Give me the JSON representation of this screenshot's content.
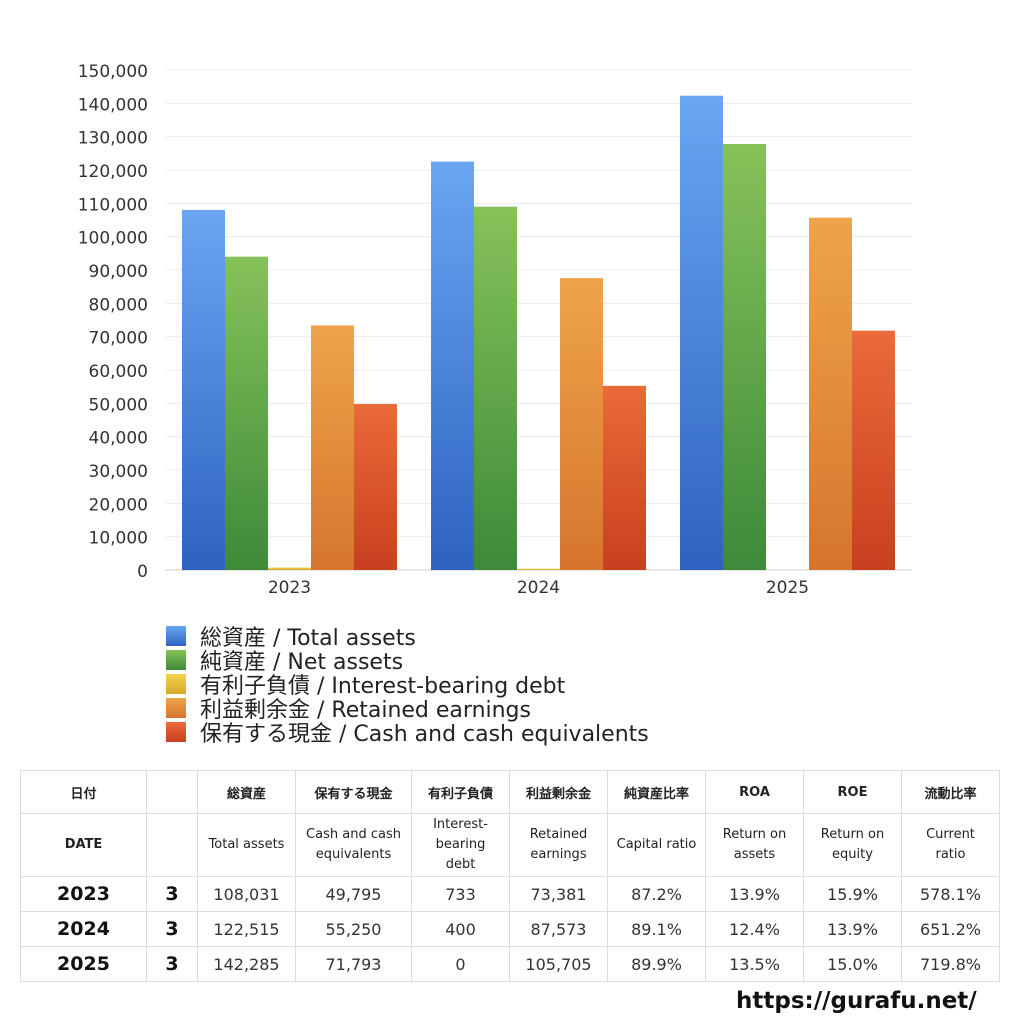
{
  "chart_data": {
    "type": "bar",
    "categories": [
      "2023",
      "2024",
      "2025"
    ],
    "ylim": [
      0,
      150000
    ],
    "yticks": [
      0,
      10000,
      20000,
      30000,
      40000,
      50000,
      60000,
      70000,
      80000,
      90000,
      100000,
      110000,
      120000,
      130000,
      140000,
      150000
    ],
    "ytick_labels": [
      "0",
      "10,000",
      "20,000",
      "30,000",
      "40,000",
      "50,000",
      "60,000",
      "70,000",
      "80,000",
      "90,000",
      "100,000",
      "110,000",
      "120,000",
      "130,000",
      "140,000",
      "150,000"
    ],
    "grid": true,
    "legend_position": "bottom",
    "series": [
      {
        "name": "総資産 / Total assets",
        "values": [
          108031,
          122515,
          142285
        ],
        "color_top": "#6aa6f2",
        "color_bottom": "#2e62c0"
      },
      {
        "name": "純資産 / Net assets",
        "values": [
          94000,
          109000,
          127800
        ],
        "color_top": "#86c25a",
        "color_bottom": "#3d8a3a"
      },
      {
        "name": "有利子負債 / Interest-bearing debt",
        "values": [
          733,
          400,
          0
        ],
        "color_top": "#f4d44e",
        "color_bottom": "#d8a72b"
      },
      {
        "name": "利益剰余金 / Retained earnings",
        "values": [
          73381,
          87573,
          105705
        ],
        "color_top": "#eea44a",
        "color_bottom": "#d6752e"
      },
      {
        "name": "保有する現金 /  Cash and cash equivalents",
        "values": [
          49795,
          55250,
          71793
        ],
        "color_top": "#ea6a3a",
        "color_bottom": "#c8401f"
      }
    ]
  },
  "table": {
    "header_jp": [
      "日付",
      "",
      "総資産",
      "保有する現金",
      "有利子負債",
      "利益剰余金",
      "純資産比率",
      "ROA",
      "ROE",
      "流動比率"
    ],
    "header_en": [
      [
        "DATE"
      ],
      [
        ""
      ],
      [
        "Total assets"
      ],
      [
        "Cash and cash",
        "equivalents"
      ],
      [
        "Interest-",
        "bearing",
        "debt"
      ],
      [
        "Retained",
        "earnings"
      ],
      [
        "Capital ratio"
      ],
      [
        "Return on",
        "assets"
      ],
      [
        "Return on",
        "equity"
      ],
      [
        "Current",
        "ratio"
      ]
    ],
    "rows": [
      [
        "2023",
        "3",
        "108,031",
        "49,795",
        "733",
        "73,381",
        "87.2%",
        "13.9%",
        "15.9%",
        "578.1%"
      ],
      [
        "2024",
        "3",
        "122,515",
        "55,250",
        "400",
        "87,573",
        "89.1%",
        "12.4%",
        "13.9%",
        "651.2%"
      ],
      [
        "2025",
        "3",
        "142,285",
        "71,793",
        "0",
        "105,705",
        "89.9%",
        "13.5%",
        "15.0%",
        "719.8%"
      ]
    ]
  },
  "footer": {
    "url": "https://gurafu.net/"
  }
}
